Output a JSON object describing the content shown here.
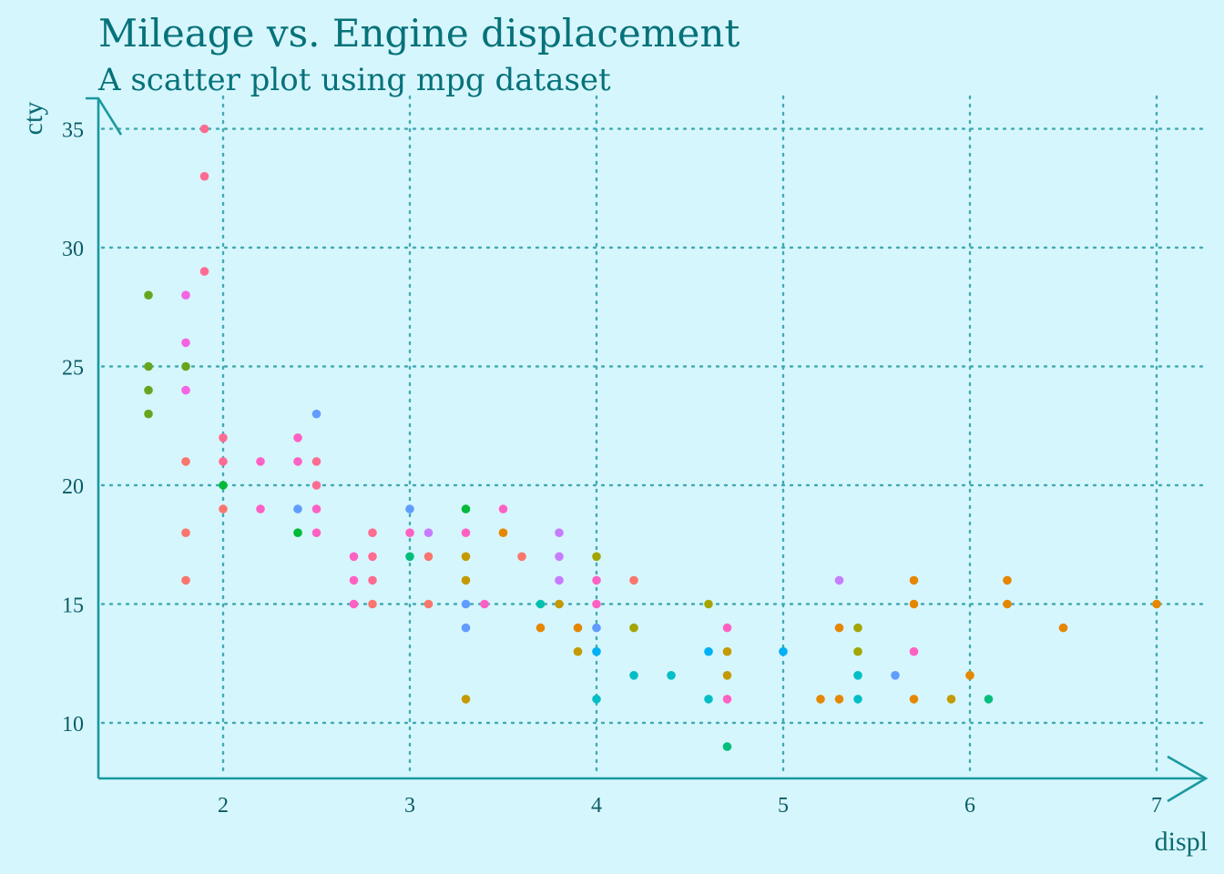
{
  "chart_data": {
    "type": "scatter",
    "title": "Mileage vs. Engine displacement",
    "subtitle": "A scatter plot using mpg dataset",
    "xlabel": "displ",
    "ylabel": "cty",
    "xlim": [
      1.33,
      7.0
    ],
    "ylim": [
      7.7,
      35.5
    ],
    "x_ticks": [
      2,
      3,
      4,
      5,
      6,
      7
    ],
    "y_ticks": [
      10,
      15,
      20,
      25,
      30,
      35
    ],
    "grid": true,
    "legend": "none",
    "colors": {
      "background": "#d6f6fd",
      "text": "#06727a",
      "grid": "#41aab2",
      "axis": "#19999f"
    },
    "points": [
      {
        "x": 1.6,
        "y": 28,
        "color": "#66a61e"
      },
      {
        "x": 1.6,
        "y": 25,
        "color": "#66a61e"
      },
      {
        "x": 1.6,
        "y": 24,
        "color": "#66a61e"
      },
      {
        "x": 1.6,
        "y": 23,
        "color": "#66a61e"
      },
      {
        "x": 1.8,
        "y": 25,
        "color": "#66a61e"
      },
      {
        "x": 1.8,
        "y": 28,
        "color": "#f564e3"
      },
      {
        "x": 1.8,
        "y": 26,
        "color": "#f564e3"
      },
      {
        "x": 1.8,
        "y": 24,
        "color": "#f564e3"
      },
      {
        "x": 1.8,
        "y": 21,
        "color": "#f8766d"
      },
      {
        "x": 1.8,
        "y": 18,
        "color": "#f8766d"
      },
      {
        "x": 1.8,
        "y": 16,
        "color": "#f8766d"
      },
      {
        "x": 1.9,
        "y": 35,
        "color": "#ff6c91"
      },
      {
        "x": 1.9,
        "y": 33,
        "color": "#ff6c91"
      },
      {
        "x": 1.9,
        "y": 29,
        "color": "#ff6c91"
      },
      {
        "x": 2.0,
        "y": 22,
        "color": "#ff6c91"
      },
      {
        "x": 2.0,
        "y": 21,
        "color": "#ff6c91"
      },
      {
        "x": 2.0,
        "y": 20,
        "color": "#00ba38"
      },
      {
        "x": 2.0,
        "y": 19,
        "color": "#f8766d"
      },
      {
        "x": 2.2,
        "y": 21,
        "color": "#ff61c3"
      },
      {
        "x": 2.2,
        "y": 19,
        "color": "#ff61c3"
      },
      {
        "x": 2.4,
        "y": 22,
        "color": "#ff61c3"
      },
      {
        "x": 2.4,
        "y": 21,
        "color": "#ff61c3"
      },
      {
        "x": 2.4,
        "y": 19,
        "color": "#619cff"
      },
      {
        "x": 2.4,
        "y": 18,
        "color": "#00ba38"
      },
      {
        "x": 2.5,
        "y": 23,
        "color": "#619cff"
      },
      {
        "x": 2.5,
        "y": 21,
        "color": "#ff6c91"
      },
      {
        "x": 2.5,
        "y": 20,
        "color": "#ff6c91"
      },
      {
        "x": 2.5,
        "y": 19,
        "color": "#ff61c3"
      },
      {
        "x": 2.5,
        "y": 18,
        "color": "#ff61c3"
      },
      {
        "x": 2.7,
        "y": 17,
        "color": "#ff61c3"
      },
      {
        "x": 2.7,
        "y": 16,
        "color": "#ff61c3"
      },
      {
        "x": 2.7,
        "y": 15,
        "color": "#ff61c3"
      },
      {
        "x": 2.8,
        "y": 18,
        "color": "#ff6c91"
      },
      {
        "x": 2.8,
        "y": 17,
        "color": "#ff6c91"
      },
      {
        "x": 2.8,
        "y": 16,
        "color": "#ff6c91"
      },
      {
        "x": 2.8,
        "y": 15,
        "color": "#f8766d"
      },
      {
        "x": 3.0,
        "y": 19,
        "color": "#619cff"
      },
      {
        "x": 3.0,
        "y": 18,
        "color": "#ff61c3"
      },
      {
        "x": 3.0,
        "y": 17,
        "color": "#00bf7d"
      },
      {
        "x": 3.1,
        "y": 18,
        "color": "#c77cff"
      },
      {
        "x": 3.1,
        "y": 17,
        "color": "#f8766d"
      },
      {
        "x": 3.1,
        "y": 15,
        "color": "#f8766d"
      },
      {
        "x": 3.3,
        "y": 19,
        "color": "#00ba38"
      },
      {
        "x": 3.3,
        "y": 18,
        "color": "#ff61c3"
      },
      {
        "x": 3.3,
        "y": 17,
        "color": "#c49a00"
      },
      {
        "x": 3.3,
        "y": 16,
        "color": "#c49a00"
      },
      {
        "x": 3.3,
        "y": 15,
        "color": "#619cff"
      },
      {
        "x": 3.3,
        "y": 14,
        "color": "#619cff"
      },
      {
        "x": 3.3,
        "y": 11,
        "color": "#c49a00"
      },
      {
        "x": 3.4,
        "y": 15,
        "color": "#ff61c3"
      },
      {
        "x": 3.5,
        "y": 19,
        "color": "#ff61c3"
      },
      {
        "x": 3.5,
        "y": 18,
        "color": "#e58700"
      },
      {
        "x": 3.6,
        "y": 17,
        "color": "#f8766d"
      },
      {
        "x": 3.7,
        "y": 15,
        "color": "#00c0af"
      },
      {
        "x": 3.7,
        "y": 14,
        "color": "#e58700"
      },
      {
        "x": 3.8,
        "y": 18,
        "color": "#c77cff"
      },
      {
        "x": 3.8,
        "y": 17,
        "color": "#c77cff"
      },
      {
        "x": 3.8,
        "y": 16,
        "color": "#c77cff"
      },
      {
        "x": 3.8,
        "y": 15,
        "color": "#c49a00"
      },
      {
        "x": 3.9,
        "y": 14,
        "color": "#e58700"
      },
      {
        "x": 3.9,
        "y": 13,
        "color": "#c49a00"
      },
      {
        "x": 4.0,
        "y": 17,
        "color": "#a3a500"
      },
      {
        "x": 4.0,
        "y": 16,
        "color": "#ff61c3"
      },
      {
        "x": 4.0,
        "y": 15,
        "color": "#ff61c3"
      },
      {
        "x": 4.0,
        "y": 14,
        "color": "#619cff"
      },
      {
        "x": 4.0,
        "y": 13,
        "color": "#00b0f6"
      },
      {
        "x": 4.0,
        "y": 11,
        "color": "#00bfc4"
      },
      {
        "x": 4.2,
        "y": 16,
        "color": "#f8766d"
      },
      {
        "x": 4.2,
        "y": 14,
        "color": "#a3a500"
      },
      {
        "x": 4.2,
        "y": 12,
        "color": "#00bfc4"
      },
      {
        "x": 4.4,
        "y": 12,
        "color": "#00bfc4"
      },
      {
        "x": 4.6,
        "y": 15,
        "color": "#a3a500"
      },
      {
        "x": 4.6,
        "y": 13,
        "color": "#00b0f6"
      },
      {
        "x": 4.6,
        "y": 11,
        "color": "#00bfc4"
      },
      {
        "x": 4.7,
        "y": 14,
        "color": "#ff61c3"
      },
      {
        "x": 4.7,
        "y": 13,
        "color": "#c49a00"
      },
      {
        "x": 4.7,
        "y": 12,
        "color": "#c49a00"
      },
      {
        "x": 4.7,
        "y": 11,
        "color": "#ff61c3"
      },
      {
        "x": 4.7,
        "y": 9,
        "color": "#00bf7d"
      },
      {
        "x": 5.0,
        "y": 13,
        "color": "#00b0f6"
      },
      {
        "x": 5.2,
        "y": 11,
        "color": "#e58700"
      },
      {
        "x": 5.3,
        "y": 16,
        "color": "#c77cff"
      },
      {
        "x": 5.3,
        "y": 14,
        "color": "#e58700"
      },
      {
        "x": 5.3,
        "y": 11,
        "color": "#e58700"
      },
      {
        "x": 5.4,
        "y": 14,
        "color": "#a3a500"
      },
      {
        "x": 5.4,
        "y": 13,
        "color": "#a3a500"
      },
      {
        "x": 5.4,
        "y": 12,
        "color": "#00bfc4"
      },
      {
        "x": 5.4,
        "y": 11,
        "color": "#00bfc4"
      },
      {
        "x": 5.6,
        "y": 12,
        "color": "#619cff"
      },
      {
        "x": 5.7,
        "y": 16,
        "color": "#e58700"
      },
      {
        "x": 5.7,
        "y": 15,
        "color": "#e58700"
      },
      {
        "x": 5.7,
        "y": 13,
        "color": "#ff61c3"
      },
      {
        "x": 5.7,
        "y": 11,
        "color": "#e58700"
      },
      {
        "x": 5.9,
        "y": 11,
        "color": "#c49a00"
      },
      {
        "x": 6.0,
        "y": 12,
        "color": "#e58700"
      },
      {
        "x": 6.1,
        "y": 11,
        "color": "#00bf7d"
      },
      {
        "x": 6.2,
        "y": 16,
        "color": "#e58700"
      },
      {
        "x": 6.2,
        "y": 15,
        "color": "#e58700"
      },
      {
        "x": 6.5,
        "y": 14,
        "color": "#e58700"
      },
      {
        "x": 7.0,
        "y": 15,
        "color": "#e58700"
      }
    ]
  }
}
